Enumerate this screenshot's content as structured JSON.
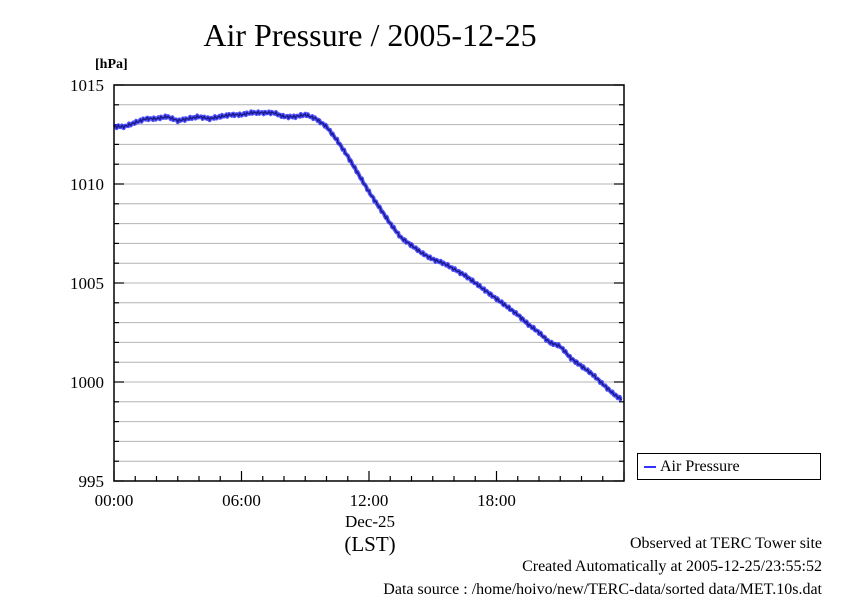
{
  "chart_data": {
    "type": "line",
    "title": "Air Pressure / 2005-12-25",
    "ylabel": "[hPa]",
    "xlabel": "(LST)",
    "date_label": "Dec-25",
    "ylim": [
      995,
      1015
    ],
    "y_ticks": [
      "995",
      "1000",
      "1005",
      "1010",
      "1015"
    ],
    "xlim_hours": [
      0,
      24
    ],
    "x_ticks": [
      "00:00",
      "06:00",
      "12:00",
      "18:00"
    ],
    "grid": true,
    "legend_position": "right",
    "series": [
      {
        "name": "Air Pressure",
        "color": "#3333ff",
        "x_hours": [
          0,
          0.5,
          1,
          1.5,
          2,
          2.5,
          3,
          3.5,
          4,
          4.5,
          5,
          5.5,
          6,
          6.5,
          7,
          7.5,
          8,
          8.5,
          9,
          9.5,
          10,
          10.5,
          11,
          11.5,
          12,
          12.5,
          13,
          13.5,
          14,
          14.5,
          15,
          15.5,
          16,
          16.5,
          17,
          17.5,
          18,
          18.5,
          19,
          19.5,
          20,
          20.5,
          21,
          21.5,
          22,
          22.5,
          23,
          23.5,
          23.9
        ],
        "values": [
          1012.9,
          1012.9,
          1013.1,
          1013.3,
          1013.3,
          1013.4,
          1013.2,
          1013.3,
          1013.4,
          1013.3,
          1013.4,
          1013.5,
          1013.5,
          1013.6,
          1013.6,
          1013.6,
          1013.4,
          1013.4,
          1013.5,
          1013.3,
          1012.9,
          1012.2,
          1011.4,
          1010.5,
          1009.6,
          1008.8,
          1008.0,
          1007.3,
          1006.9,
          1006.5,
          1006.2,
          1006.0,
          1005.7,
          1005.4,
          1005.0,
          1004.6,
          1004.2,
          1003.8,
          1003.4,
          1002.9,
          1002.5,
          1002.0,
          1001.8,
          1001.2,
          1000.8,
          1000.4,
          999.9,
          999.4,
          999.1
        ]
      }
    ]
  },
  "footer": {
    "site": "Observed at TERC Tower site",
    "created": "Created Automatically at 2005-12-25/23:55:52",
    "source": "Data source : /home/hoivo/new/TERC-data/sorted  data/MET.10s.dat"
  }
}
